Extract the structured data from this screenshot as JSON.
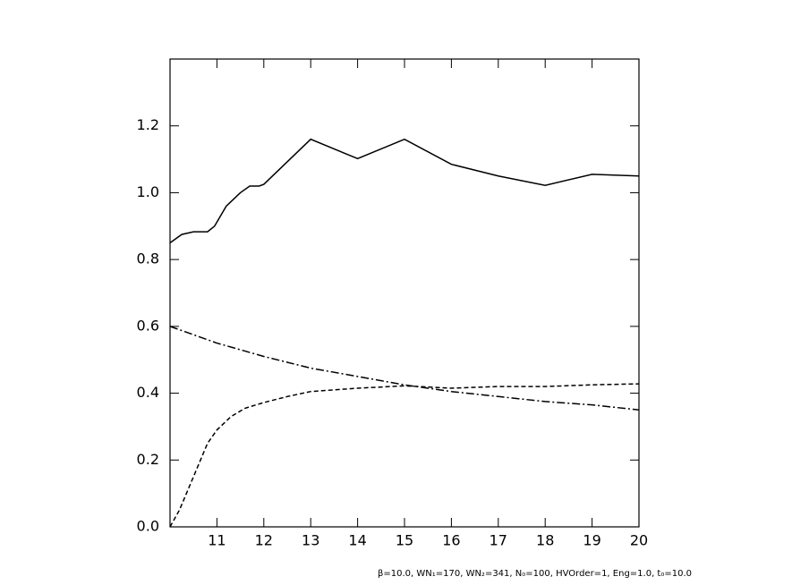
{
  "chart_data": {
    "type": "line",
    "xlim": [
      10,
      20
    ],
    "xticks": [
      11,
      12,
      13,
      14,
      15,
      16,
      17,
      18,
      19,
      20
    ],
    "ylim": [
      0,
      1.4
    ],
    "yticks": [
      {
        "value": 0,
        "label": "0.0"
      },
      0.2,
      0.4,
      0.6,
      0.8,
      {
        "value": 1,
        "label": "1.0"
      },
      1.2
    ],
    "series": [
      {
        "color": "#000000",
        "linestyle": "solid",
        "x": [
          10,
          10.25,
          10.5,
          10.8,
          10.95,
          11.2,
          11.5,
          11.7,
          11.9,
          12,
          13,
          14,
          15,
          16,
          17,
          18,
          19,
          20
        ],
        "values": [
          0.85,
          0.875,
          0.883,
          0.883,
          0.9,
          0.96,
          1.0,
          1.02,
          1.02,
          1.025,
          1.16,
          1.102,
          1.16,
          1.085,
          1.05,
          1.022,
          1.055,
          1.05
        ]
      },
      {
        "color": "#000000",
        "linestyle": "dashed",
        "x": [
          10,
          10.2,
          10.5,
          10.8,
          11,
          11.3,
          11.6,
          12,
          12.5,
          13,
          14,
          15,
          16,
          17,
          18,
          19,
          20
        ],
        "values": [
          0,
          0.05,
          0.15,
          0.25,
          0.29,
          0.33,
          0.355,
          0.372,
          0.39,
          0.405,
          0.415,
          0.422,
          0.415,
          0.42,
          0.42,
          0.425,
          0.428
        ]
      },
      {
        "color": "#000000",
        "linestyle": "dashdot",
        "x": [
          10,
          11,
          11.5,
          12,
          13,
          14,
          15,
          16,
          17,
          18,
          19,
          20
        ],
        "values": [
          0.6,
          0.55,
          0.53,
          0.51,
          0.475,
          0.45,
          0.425,
          0.405,
          0.39,
          0.375,
          0.365,
          0.35
        ]
      }
    ],
    "annotation": "β=10.0, WN₁=170, WN₂=341, N₀=100, HVOrder=1, Eng=1.0, t₀=10.0"
  }
}
